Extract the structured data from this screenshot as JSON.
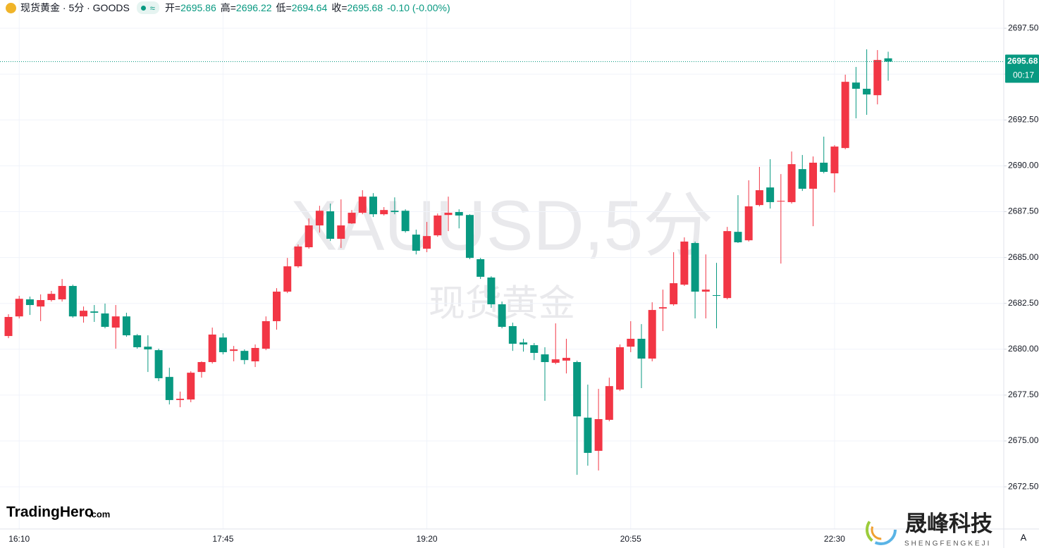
{
  "header": {
    "name": "现货黄金 · 5分 · GOODS",
    "status": "≈",
    "open_label": "开=",
    "high_label": "高=",
    "low_label": "低=",
    "close_label": "收=",
    "change": "-0.10 (-0.00%)"
  },
  "chart_data": {
    "type": "candlestick",
    "watermark": "XAUUSD,5分",
    "watermark_sub": "现货黄金",
    "countdown": "00:17",
    "up_color": "#f23645",
    "down_color": "#089981",
    "grid": true,
    "categories": [
      null,
      "16:10",
      null,
      null,
      null,
      null,
      null,
      null,
      null,
      null,
      null,
      null,
      null,
      null,
      null,
      null,
      null,
      null,
      null,
      null,
      "17:45",
      null,
      null,
      null,
      null,
      null,
      null,
      null,
      null,
      null,
      null,
      null,
      null,
      null,
      null,
      null,
      null,
      null,
      null,
      "19:20",
      null,
      null,
      null,
      null,
      null,
      null,
      null,
      null,
      null,
      null,
      null,
      null,
      null,
      null,
      null,
      null,
      null,
      null,
      "20:55",
      null,
      null,
      null,
      null,
      null,
      null,
      null,
      null,
      null,
      null,
      null,
      null,
      null,
      null,
      null,
      null,
      null,
      null,
      "22:30",
      null,
      null,
      null,
      null,
      null
    ],
    "open": [
      2680.72,
      2681.79,
      2682.72,
      2682.33,
      2682.68,
      2682.72,
      2683.45,
      2681.79,
      2682.06,
      2681.95,
      2681.18,
      2681.79,
      2680.76,
      2680.14,
      2679.95,
      2678.49,
      2677.23,
      2677.26,
      2678.76,
      2679.3,
      2680.64,
      2679.91,
      2679.91,
      2679.34,
      2680.03,
      2681.53,
      2683.14,
      2684.52,
      2685.56,
      2686.75,
      2687.52,
      2686.02,
      2686.86,
      2687.44,
      2688.32,
      2687.36,
      2687.55,
      2687.55,
      2686.25,
      2685.48,
      2686.21,
      2687.32,
      2687.48,
      2687.32,
      2684.91,
      2683.91,
      2682.45,
      2681.26,
      2680.37,
      2680.22,
      2679.72,
      2679.26,
      2679.38,
      2679.3,
      2676.27,
      2674.46,
      2676.15,
      2677.8,
      2680.14,
      2680.57,
      2679.49,
      2682.22,
      2682.45,
      2683.52,
      2685.79,
      2683.14,
      2682.95,
      2682.79,
      2686.4,
      2685.94,
      2687.86,
      2688.82,
      2688.05,
      2688.02,
      2689.82,
      2688.75,
      2690.17,
      2689.59,
      2690.97,
      2694.54,
      2694.2,
      2693.85,
      2695.86
    ],
    "high": [
      2681.91,
      2682.91,
      2682.87,
      2682.99,
      2683.18,
      2683.83,
      2683.52,
      2682.33,
      2682.41,
      2682.49,
      2682.41,
      2681.99,
      2680.83,
      2680.76,
      2680.03,
      2678.99,
      2677.69,
      2678.8,
      2679.34,
      2681.18,
      2680.87,
      2680.18,
      2679.99,
      2680.26,
      2681.79,
      2683.33,
      2684.98,
      2685.71,
      2687.13,
      2687.82,
      2687.94,
      2688.17,
      2687.59,
      2688.67,
      2688.51,
      2687.75,
      2688.28,
      2687.63,
      2686.52,
      2686.94,
      2687.4,
      2688.32,
      2687.63,
      2687.36,
      2684.98,
      2683.98,
      2682.6,
      2681.45,
      2680.57,
      2680.34,
      2680.11,
      2681.41,
      2680.57,
      2679.38,
      2678.07,
      2677.84,
      2678.45,
      2680.26,
      2681.53,
      2681.37,
      2682.56,
      2683.25,
      2685.29,
      2686.1,
      2685.87,
      2685.17,
      2684.71,
      2686.67,
      2688.4,
      2689.21,
      2689.94,
      2690.36,
      2689.55,
      2690.78,
      2690.59,
      2690.51,
      2691.59,
      2691.13,
      2694.97,
      2695.39,
      2696.35,
      2696.31,
      2696.22
    ],
    "low": [
      2680.6,
      2681.68,
      2681.87,
      2681.53,
      2682.6,
      2682.6,
      2681.72,
      2681.45,
      2681.49,
      2681.14,
      2680.03,
      2680.68,
      2680.03,
      2678.76,
      2678.26,
      2676.99,
      2676.84,
      2677.11,
      2678.45,
      2679.22,
      2679.72,
      2679.34,
      2679.18,
      2679.03,
      2679.95,
      2681.07,
      2683.06,
      2684.44,
      2685.48,
      2686.36,
      2685.9,
      2685.52,
      2686.83,
      2687.36,
      2687.21,
      2687.29,
      2687.36,
      2686.36,
      2685.17,
      2685.29,
      2686.13,
      2686.44,
      2686.59,
      2684.91,
      2683.83,
      2682.26,
      2681.14,
      2679.91,
      2679.87,
      2679.41,
      2677.19,
      2679.18,
      2678.68,
      2673.15,
      2673.65,
      2673.39,
      2676.07,
      2677.72,
      2679.84,
      2677.88,
      2679.34,
      2680.99,
      2682.37,
      2683.45,
      2681.68,
      2681.68,
      2681.14,
      2682.72,
      2685.79,
      2685.87,
      2687.79,
      2687.67,
      2684.67,
      2687.94,
      2688.63,
      2686.71,
      2689.59,
      2688.55,
      2690.9,
      2692.59,
      2692.78,
      2693.35,
      2694.64
    ],
    "close": [
      2681.76,
      2682.75,
      2682.41,
      2682.68,
      2683.02,
      2683.45,
      2681.79,
      2682.1,
      2681.99,
      2681.22,
      2681.79,
      2680.76,
      2680.11,
      2679.99,
      2678.42,
      2677.23,
      2677.3,
      2678.72,
      2679.3,
      2680.8,
      2679.84,
      2679.99,
      2679.41,
      2680.07,
      2681.53,
      2683.14,
      2684.52,
      2685.6,
      2686.75,
      2687.55,
      2686.02,
      2686.75,
      2687.44,
      2688.32,
      2687.36,
      2687.59,
      2687.48,
      2686.44,
      2685.37,
      2686.17,
      2687.29,
      2687.44,
      2687.29,
      2684.98,
      2683.95,
      2682.45,
      2681.22,
      2680.3,
      2680.26,
      2679.8,
      2679.3,
      2679.45,
      2679.53,
      2676.34,
      2674.35,
      2676.19,
      2677.99,
      2680.11,
      2680.57,
      2679.49,
      2682.14,
      2682.29,
      2683.6,
      2685.87,
      2683.14,
      2683.25,
      2682.91,
      2686.44,
      2685.83,
      2687.79,
      2688.67,
      2688.02,
      2688.09,
      2690.09,
      2688.75,
      2690.17,
      2689.67,
      2691.05,
      2694.58,
      2694.2,
      2693.89,
      2695.77,
      2695.68
    ],
    "ylim": [
      2670.2,
      2699.04
    ],
    "yticks": [
      {
        "value": 2672.5,
        "label": "2672.50"
      },
      {
        "value": 2675,
        "label": "2675.00"
      },
      {
        "value": 2677.5,
        "label": "2677.50"
      },
      {
        "value": 2680,
        "label": "2680.00"
      },
      {
        "value": 2682.5,
        "label": "2682.50"
      },
      {
        "value": 2685,
        "label": "2685.00"
      },
      {
        "value": 2687.5,
        "label": "2687.50"
      },
      {
        "value": 2690,
        "label": "2690.00"
      },
      {
        "value": 2692.5,
        "label": "2692.50"
      },
      {
        "value": 2695,
        "label": "2695.00"
      },
      {
        "value": 2697.5,
        "label": "2697.50"
      }
    ]
  },
  "branding": {
    "left_main": "TradingHero",
    "left_suffix": ".com",
    "right_main": "晟峰科技",
    "right_sub": "SHENGFENGKEJI",
    "scale_button": "A"
  }
}
